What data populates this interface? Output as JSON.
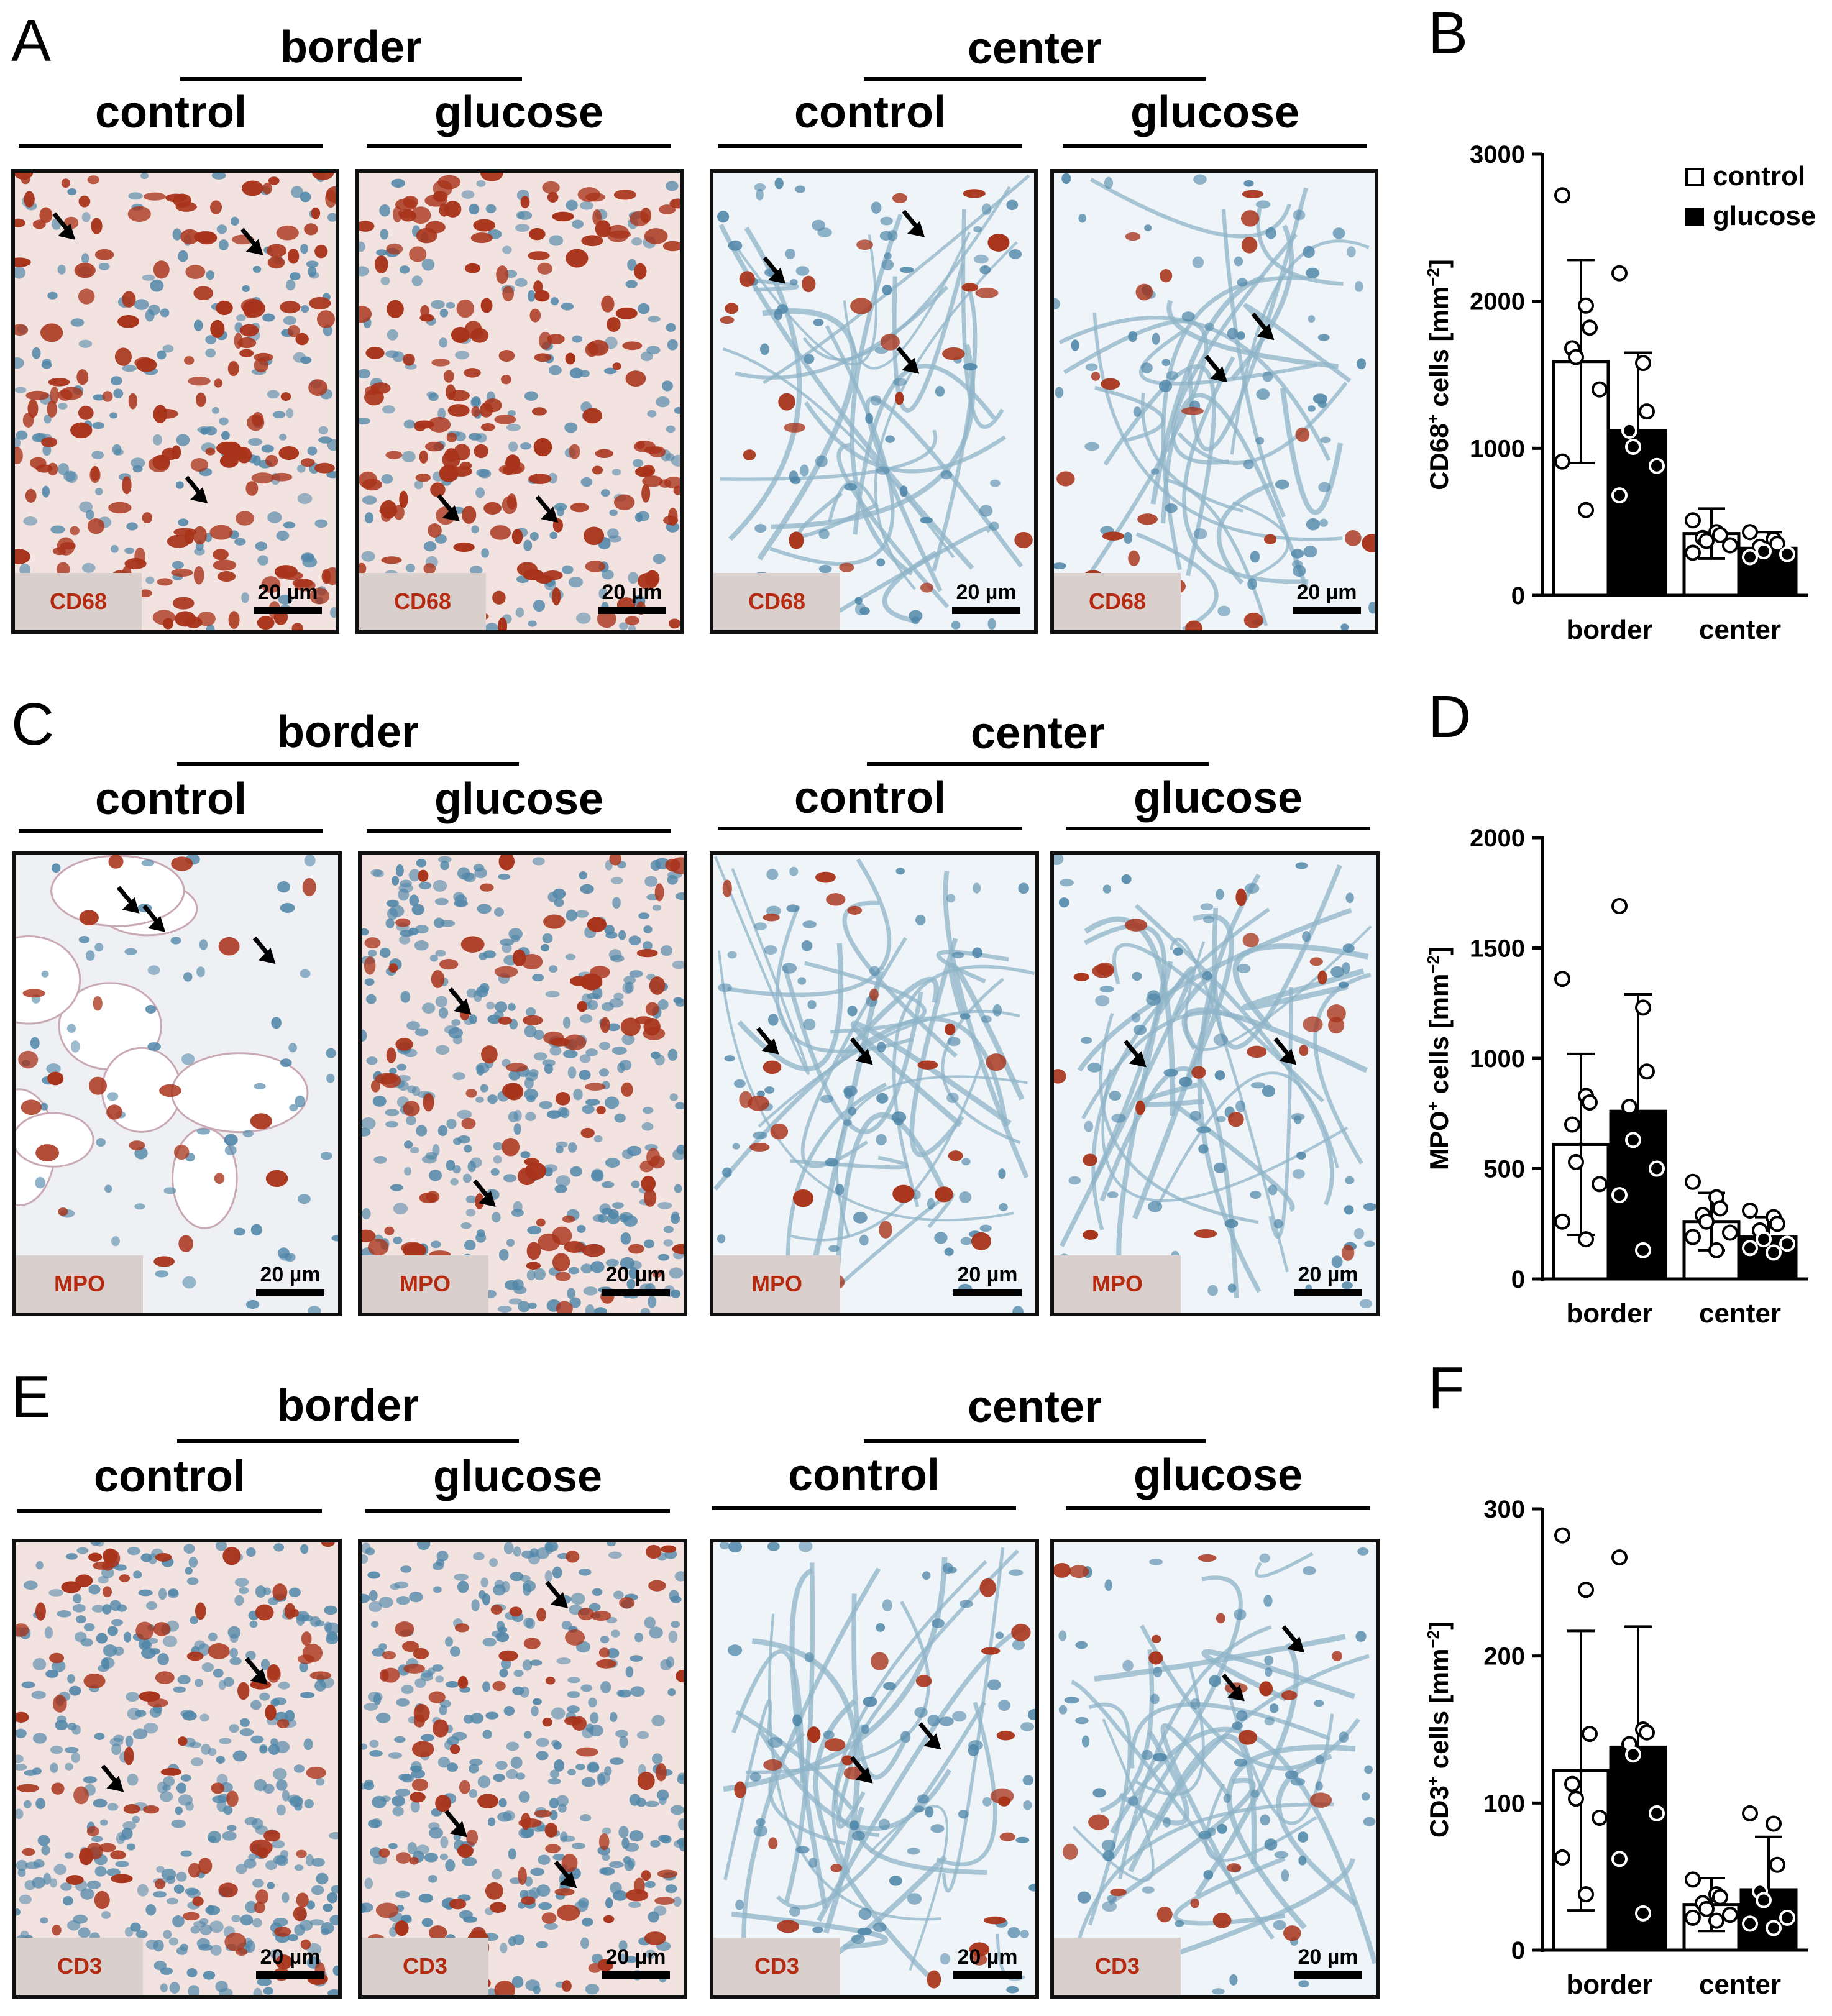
{
  "colors": {
    "control": "#ffffff",
    "glucose": "#000000",
    "stain_label": "#b52a10",
    "stain_box": "#d9cfcc",
    "tissue_bg_light": "#eef4f8",
    "tissue_bg_warm": "#f3e3e0",
    "positive_cell": "#a8331a",
    "nucleus": "#4f86a8",
    "fiber": "#8fb4c8"
  },
  "rows": [
    {
      "letter": "A",
      "groups": [
        "border",
        "center"
      ],
      "conditions": [
        "control",
        "glucose",
        "control",
        "glucose"
      ],
      "stain": "CD68",
      "scale_label": "20 µm"
    },
    {
      "letter": "C",
      "groups": [
        "border",
        "center"
      ],
      "conditions": [
        "control",
        "glucose",
        "control",
        "glucose"
      ],
      "stain": "MPO",
      "scale_label": "20 µm"
    },
    {
      "letter": "E",
      "groups": [
        "border",
        "center"
      ],
      "conditions": [
        "control",
        "glucose",
        "control",
        "glucose"
      ],
      "stain": "CD3",
      "scale_label": "20 µm"
    }
  ],
  "chart_data": [
    {
      "panel": "B",
      "type": "bar",
      "categories": [
        "border",
        "center"
      ],
      "ylabel_main": "CD68",
      "ylabel_sup": "+",
      "ylabel_rest": " cells [mm",
      "ylabel_unit_sup": "−2",
      "ylabel_close": "]",
      "ylim": [
        0,
        3000
      ],
      "yticks": [
        0,
        1000,
        2000,
        3000
      ],
      "legend": [
        "control",
        "glucose"
      ],
      "legend_placement": "top-right",
      "series": [
        {
          "name": "control",
          "values": [
            1590,
            420
          ],
          "sd": [
            690,
            170
          ],
          "points": [
            [
              2720,
              1970,
              1820,
              1680,
              1620,
              1400,
              910,
              580
            ],
            [
              510,
              430,
              410,
              390,
              370,
              340,
              290
            ]
          ]
        },
        {
          "name": "glucose",
          "values": [
            1120,
            320
          ],
          "sd": [
            530,
            110
          ],
          "points": [
            [
              2190,
              1580,
              1250,
              1120,
              1010,
              880,
              680
            ],
            [
              430,
              380,
              350,
              330,
              300,
              280,
              260
            ]
          ]
        }
      ]
    },
    {
      "panel": "D",
      "type": "bar",
      "categories": [
        "border",
        "center"
      ],
      "ylabel_main": "MPO",
      "ylabel_sup": "+",
      "ylabel_rest": " cells [mm",
      "ylabel_unit_sup": "−2",
      "ylabel_close": "]",
      "ylim": [
        0,
        2000
      ],
      "yticks": [
        0,
        500,
        1000,
        1500,
        2000
      ],
      "series": [
        {
          "name": "control",
          "values": [
            610,
            260
          ],
          "sd": [
            410,
            130
          ],
          "points": [
            [
              1360,
              830,
              800,
              700,
              530,
              430,
              260,
              180
            ],
            [
              440,
              370,
              320,
              290,
              260,
              210,
              190,
              130
            ]
          ]
        },
        {
          "name": "glucose",
          "values": [
            760,
            190
          ],
          "sd": [
            530,
            90
          ],
          "points": [
            [
              1690,
              1230,
              940,
              780,
              630,
              500,
              380,
              130
            ],
            [
              310,
              280,
              250,
              220,
              180,
              160,
              140,
              120
            ]
          ]
        }
      ]
    },
    {
      "panel": "F",
      "type": "bar",
      "categories": [
        "border",
        "center"
      ],
      "ylabel_main": "CD3",
      "ylabel_sup": "+",
      "ylabel_rest": " cells [mm",
      "ylabel_unit_sup": "−2",
      "ylabel_close": "]",
      "ylim": [
        0,
        300
      ],
      "yticks": [
        0,
        100,
        200,
        300
      ],
      "series": [
        {
          "name": "control",
          "values": [
            122,
            31
          ],
          "sd": [
            95,
            18
          ],
          "points": [
            [
              282,
              245,
              147,
              113,
              103,
              90,
              63,
              38
            ],
            [
              48,
              38,
              36,
              32,
              28,
              24,
              22,
              20
            ]
          ]
        },
        {
          "name": "glucose",
          "values": [
            138,
            41
          ],
          "sd": [
            82,
            36
          ],
          "points": [
            [
              267,
              150,
              148,
              140,
              133,
              93,
              62,
              25
            ],
            [
              93,
              86,
              58,
              40,
              34,
              22,
              18,
              15
            ]
          ]
        }
      ]
    }
  ]
}
